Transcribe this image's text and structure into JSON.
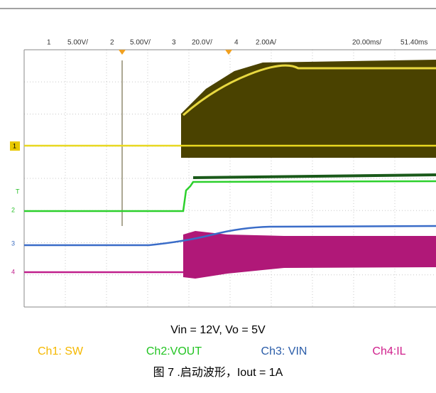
{
  "header": {
    "channels": [
      {
        "number": "1",
        "scale": "5.00V/",
        "color": "#e8c800"
      },
      {
        "number": "2",
        "scale": "5.00V/",
        "color": "#2cc02c"
      },
      {
        "number": "3",
        "scale": "20.0V/",
        "color": "#3a6cc0"
      },
      {
        "number": "4",
        "scale": "2.00A/",
        "color": "#c0208c"
      }
    ],
    "timebase": "20.00ms/",
    "delay": "51.40ms"
  },
  "markers": {
    "ch1": "1",
    "ch2": "2",
    "ch3": "3",
    "ch4": "4",
    "trigger": "T"
  },
  "caption": {
    "conditions": "Vin = 12V, Vo = 5V",
    "legend": [
      {
        "text": "Ch1: SW",
        "color": "#f5b800"
      },
      {
        "text": "Ch2:VOUT",
        "color": "#22c422"
      },
      {
        "text": "Ch3: VIN",
        "color": "#2a5ca8"
      },
      {
        "text": "Ch4:IL",
        "color": "#d0208c"
      }
    ],
    "figure": "图 7 .启动波形，Iout = 1A"
  }
}
